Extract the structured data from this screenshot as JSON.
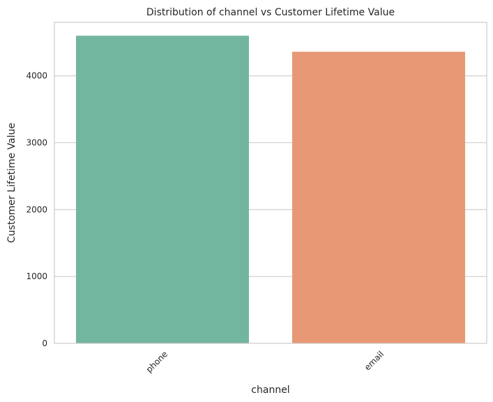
{
  "chart_data": {
    "type": "bar",
    "title": "Distribution of channel vs Customer Lifetime Value",
    "xlabel": "channel",
    "ylabel": "Customer Lifetime Value",
    "categories": [
      "phone",
      "email"
    ],
    "values": [
      4600,
      4360
    ],
    "colors": [
      "#73b6a0",
      "#e89874"
    ],
    "ylim": [
      0,
      4800
    ],
    "yticks": [
      0,
      1000,
      2000,
      3000,
      4000
    ],
    "ytick_labels": [
      "0",
      "1000",
      "2000",
      "3000",
      "4000"
    ],
    "grid": "horizontal",
    "xtick_rotation": 45
  }
}
